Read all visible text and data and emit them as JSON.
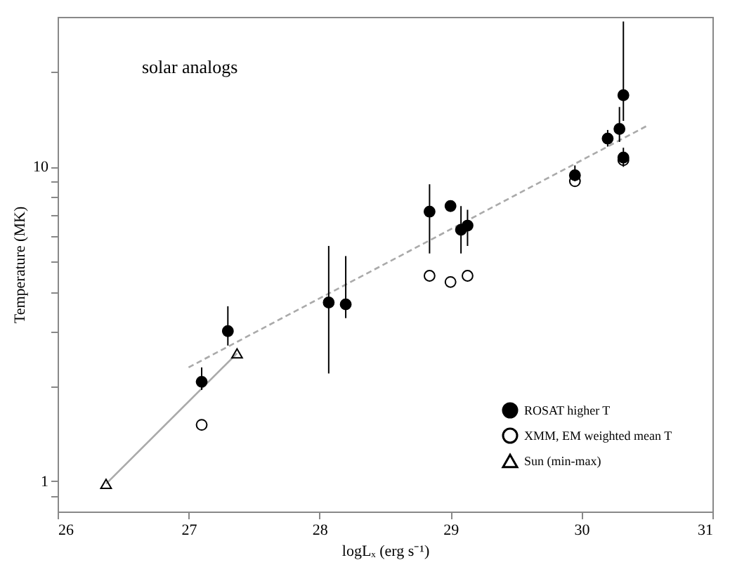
{
  "chart_data": {
    "type": "scatter",
    "xlabel": "logLₓ (erg s⁻¹)",
    "ylabel": "Temperature (MK)",
    "annotations": [
      "solar analogs"
    ],
    "log": "y",
    "grid": false,
    "legend": "bottom right",
    "xlim": [
      26,
      31
    ],
    "xticks": [
      26,
      27,
      28,
      29,
      30,
      31
    ],
    "ylim": [
      0.8,
      30
    ],
    "yticks": [
      {
        "value": 0.9,
        "label": null
      },
      1,
      {
        "value": 2,
        "label": null
      },
      {
        "value": 3,
        "label": null
      },
      {
        "value": 4,
        "label": null
      },
      {
        "value": 5,
        "label": null
      },
      {
        "value": 6,
        "label": null
      },
      {
        "value": 7,
        "label": null
      },
      {
        "value": 8,
        "label": null
      },
      {
        "value": 9,
        "label": null
      },
      10,
      {
        "value": 20,
        "label": null
      }
    ],
    "series": [
      {
        "type": "line",
        "color": "#aaaaaa",
        "line_style": "solid",
        "marker": "none",
        "x": [
          26.37,
          27.37
        ],
        "values": [
          0.98,
          2.55
        ]
      },
      {
        "type": "line",
        "color": "#aaaaaa",
        "line_style": "dashed",
        "marker": "none",
        "x": [
          27.0,
          30.5
        ],
        "values": [
          2.3,
          13.5
        ]
      },
      {
        "name": "ROSAT higher T",
        "color": "#000000",
        "marker": "circle",
        "x": [
          27.1,
          27.3,
          28.07,
          28.2,
          28.84,
          29.0,
          29.08,
          29.13,
          29.95,
          30.2,
          30.29,
          30.32,
          30.32
        ],
        "values": [
          2.07,
          3.0,
          3.7,
          3.65,
          7.2,
          7.5,
          6.3,
          6.5,
          9.4,
          12.3,
          13.2,
          16.9,
          10.7
        ],
        "errors": [
          [
            1.95,
            2.3
          ],
          [
            2.7,
            3.6
          ],
          [
            2.2,
            5.6
          ],
          [
            3.3,
            5.2
          ],
          [
            5.3,
            8.8
          ],
          null,
          [
            5.3,
            7.5
          ],
          [
            5.6,
            7.3
          ],
          [
            9.0,
            10.1
          ],
          [
            11.6,
            13.1
          ],
          [
            12.0,
            15.5
          ],
          [
            14.0,
            29
          ],
          [
            10.0,
            11.5
          ]
        ]
      },
      {
        "name": "XMM, EM weighted mean T",
        "color": "#000000",
        "marker": "circle",
        "x": [
          27.1,
          28.84,
          29.0,
          29.13,
          29.95,
          30.32
        ],
        "values": [
          1.51,
          4.5,
          4.3,
          4.5,
          9.0,
          10.5
        ]
      },
      {
        "name": "Sun (min-max)",
        "color": "#000000",
        "marker": "triangle",
        "x": [
          26.37,
          27.37
        ],
        "values": [
          0.98,
          2.55
        ]
      }
    ]
  }
}
